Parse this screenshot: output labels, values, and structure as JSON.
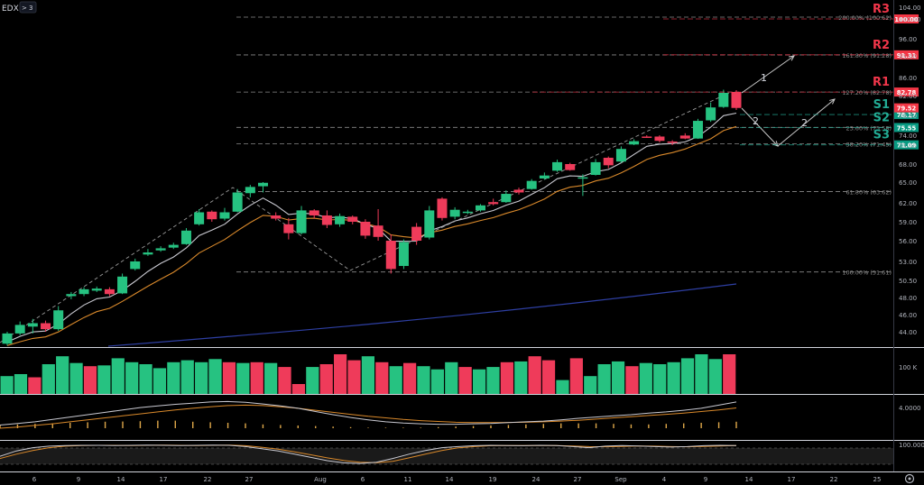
{
  "header": {
    "symbol": "EDX",
    "badge_chevron": ">",
    "badge_count": "3"
  },
  "colors": {
    "up": "#26c281",
    "down": "#ef3b5a",
    "ema_fast": "#c9c9d1",
    "ema_slow": "#d9892b",
    "ma_long": "#2e3fa3",
    "fib_line": "#8a8a8a",
    "resistance": "#f2364a",
    "support": "#22ab94",
    "bg": "#000000"
  },
  "chart_data": [
    {
      "type": "candlestick",
      "panel": "price",
      "y_ticks": [
        44.0,
        46.0,
        48.0,
        50.5,
        53.0,
        56.0,
        59.0,
        62.0,
        65.0,
        68.0,
        71.0,
        74.0,
        78.0,
        82.0,
        86.0,
        91.0,
        96.0,
        100.0,
        104.0
      ],
      "x_ticks": [
        "6",
        "9",
        "14",
        "17",
        "22",
        "27",
        "Aug",
        "6",
        "11",
        "14",
        "19",
        "24",
        "27",
        "Sep",
        "4",
        "9",
        "14",
        "17",
        "22",
        "25"
      ],
      "candles": [
        {
          "o": 42.6,
          "h": 44.0,
          "l": 42.4,
          "c": 43.8
        },
        {
          "o": 43.8,
          "h": 45.2,
          "l": 43.6,
          "c": 44.8
        },
        {
          "o": 44.6,
          "h": 45.5,
          "l": 43.8,
          "c": 45.0
        },
        {
          "o": 45.0,
          "h": 45.3,
          "l": 44.0,
          "c": 44.3
        },
        {
          "o": 44.3,
          "h": 47.0,
          "l": 44.1,
          "c": 46.5
        },
        {
          "o": 48.2,
          "h": 48.8,
          "l": 47.8,
          "c": 48.5
        },
        {
          "o": 48.5,
          "h": 49.5,
          "l": 48.2,
          "c": 49.2
        },
        {
          "o": 49.0,
          "h": 49.6,
          "l": 48.8,
          "c": 49.3
        },
        {
          "o": 49.2,
          "h": 49.5,
          "l": 48.2,
          "c": 48.5
        },
        {
          "o": 48.6,
          "h": 51.4,
          "l": 48.5,
          "c": 51.0
        },
        {
          "o": 52.0,
          "h": 53.4,
          "l": 51.8,
          "c": 53.0
        },
        {
          "o": 54.0,
          "h": 54.8,
          "l": 53.8,
          "c": 54.3
        },
        {
          "o": 54.6,
          "h": 55.2,
          "l": 54.4,
          "c": 54.9
        },
        {
          "o": 55.0,
          "h": 55.7,
          "l": 54.8,
          "c": 55.4
        },
        {
          "o": 55.5,
          "h": 58.0,
          "l": 55.4,
          "c": 57.6
        },
        {
          "o": 58.6,
          "h": 61.0,
          "l": 58.4,
          "c": 60.5
        },
        {
          "o": 60.6,
          "h": 60.8,
          "l": 59.0,
          "c": 59.4
        },
        {
          "o": 59.5,
          "h": 61.2,
          "l": 59.2,
          "c": 60.5
        },
        {
          "o": 60.6,
          "h": 64.0,
          "l": 60.5,
          "c": 63.5
        },
        {
          "o": 63.4,
          "h": 64.6,
          "l": 62.8,
          "c": 64.3
        },
        {
          "o": 64.4,
          "h": 65.0,
          "l": 63.5,
          "c": 64.9
        },
        {
          "o": 60.0,
          "h": 60.5,
          "l": 59.2,
          "c": 59.5
        },
        {
          "o": 58.6,
          "h": 59.6,
          "l": 56.2,
          "c": 57.2
        },
        {
          "o": 57.2,
          "h": 61.5,
          "l": 57.0,
          "c": 60.8
        },
        {
          "o": 60.8,
          "h": 61.0,
          "l": 59.5,
          "c": 60.0
        },
        {
          "o": 60.0,
          "h": 60.8,
          "l": 58.0,
          "c": 58.5
        },
        {
          "o": 58.6,
          "h": 60.3,
          "l": 58.2,
          "c": 59.9
        },
        {
          "o": 59.8,
          "h": 60.0,
          "l": 58.6,
          "c": 59.0
        },
        {
          "o": 59.0,
          "h": 59.4,
          "l": 56.3,
          "c": 56.8
        },
        {
          "o": 58.4,
          "h": 61.0,
          "l": 56.0,
          "c": 56.6
        },
        {
          "o": 56.0,
          "h": 57.0,
          "l": 51.4,
          "c": 52.0
        },
        {
          "o": 52.4,
          "h": 56.2,
          "l": 52.0,
          "c": 55.8
        },
        {
          "o": 58.2,
          "h": 58.8,
          "l": 55.4,
          "c": 56.0
        },
        {
          "o": 56.5,
          "h": 61.5,
          "l": 56.2,
          "c": 60.8
        },
        {
          "o": 62.6,
          "h": 62.8,
          "l": 59.2,
          "c": 59.6
        },
        {
          "o": 59.8,
          "h": 61.3,
          "l": 59.4,
          "c": 60.9
        },
        {
          "o": 60.5,
          "h": 60.9,
          "l": 60.2,
          "c": 60.6
        },
        {
          "o": 60.8,
          "h": 61.8,
          "l": 60.6,
          "c": 61.6
        },
        {
          "o": 62.1,
          "h": 62.6,
          "l": 61.6,
          "c": 61.8
        },
        {
          "o": 62.1,
          "h": 63.8,
          "l": 62.0,
          "c": 63.3
        },
        {
          "o": 63.9,
          "h": 64.2,
          "l": 63.2,
          "c": 63.5
        },
        {
          "o": 64.0,
          "h": 65.5,
          "l": 63.9,
          "c": 65.2
        },
        {
          "o": 65.6,
          "h": 66.6,
          "l": 65.4,
          "c": 66.1
        },
        {
          "o": 66.9,
          "h": 68.7,
          "l": 66.7,
          "c": 68.3
        },
        {
          "o": 68.0,
          "h": 68.2,
          "l": 66.9,
          "c": 67.0
        },
        {
          "o": 65.6,
          "h": 66.3,
          "l": 63.0,
          "c": 65.8
        },
        {
          "o": 66.2,
          "h": 68.8,
          "l": 66.1,
          "c": 68.3
        },
        {
          "o": 69.0,
          "h": 69.2,
          "l": 67.3,
          "c": 67.8
        },
        {
          "o": 68.4,
          "h": 70.8,
          "l": 68.2,
          "c": 70.4
        },
        {
          "o": 71.2,
          "h": 72.8,
          "l": 71.0,
          "c": 72.2
        },
        {
          "o": 73.6,
          "h": 74.0,
          "l": 73.2,
          "c": 73.4
        },
        {
          "o": 73.6,
          "h": 74.0,
          "l": 71.8,
          "c": 72.3
        },
        {
          "o": 72.1,
          "h": 72.5,
          "l": 71.0,
          "c": 71.8
        },
        {
          "o": 73.9,
          "h": 74.4,
          "l": 72.8,
          "c": 73.0
        },
        {
          "o": 73.0,
          "h": 77.3,
          "l": 72.9,
          "c": 76.9
        },
        {
          "o": 77.0,
          "h": 80.6,
          "l": 76.7,
          "c": 79.6
        },
        {
          "o": 79.7,
          "h": 83.3,
          "l": 79.5,
          "c": 82.6
        },
        {
          "o": 82.8,
          "h": 83.2,
          "l": 79.1,
          "c": 79.5
        }
      ],
      "last_price": 79.52,
      "last_price_label": "79.52",
      "fib_levels": [
        {
          "label": "200.00% (100.62)",
          "value": 100.62
        },
        {
          "label": "161.80% (91.28)",
          "value": 91.28
        },
        {
          "label": "127.20% (82.78)",
          "value": 82.78
        },
        {
          "label": "23.60% (75.58)",
          "value": 75.58
        },
        {
          "label": "38.20% (71.45)",
          "value": 71.45
        },
        {
          "label": "61.80% (63.62)",
          "value": 63.62
        },
        {
          "label": "100.00% (51.61)",
          "value": 51.61
        }
      ],
      "levels": [
        {
          "name": "R3",
          "value": 100.0,
          "tag": "100.00",
          "kind": "resistance"
        },
        {
          "name": "R2",
          "value": 91.31,
          "tag": "91.31",
          "kind": "resistance"
        },
        {
          "name": "R1",
          "value": 82.78,
          "tag": "82.78",
          "kind": "resistance"
        },
        {
          "name": "S1",
          "value": 78.17,
          "tag": "78.17",
          "kind": "support"
        },
        {
          "name": "S2",
          "value": 75.55,
          "tag": "75.55",
          "kind": "support"
        },
        {
          "name": "S3",
          "value": 71.09,
          "tag": "71.09",
          "kind": "support"
        }
      ],
      "projection_labels": [
        "1",
        "2",
        "2"
      ]
    },
    {
      "type": "bar",
      "panel": "volume",
      "y_tick_label": "100 K",
      "bars": [
        {
          "v": 0.45,
          "up": true
        },
        {
          "v": 0.5,
          "up": true
        },
        {
          "v": 0.42,
          "up": false
        },
        {
          "v": 0.75,
          "up": true
        },
        {
          "v": 0.95,
          "up": true
        },
        {
          "v": 0.78,
          "up": true
        },
        {
          "v": 0.7,
          "up": false
        },
        {
          "v": 0.72,
          "up": true
        },
        {
          "v": 0.9,
          "up": true
        },
        {
          "v": 0.8,
          "up": true
        },
        {
          "v": 0.75,
          "up": true
        },
        {
          "v": 0.65,
          "up": true
        },
        {
          "v": 0.8,
          "up": true
        },
        {
          "v": 0.85,
          "up": true
        },
        {
          "v": 0.8,
          "up": true
        },
        {
          "v": 0.88,
          "up": true
        },
        {
          "v": 0.8,
          "up": false
        },
        {
          "v": 0.78,
          "up": true
        },
        {
          "v": 0.8,
          "up": false
        },
        {
          "v": 0.78,
          "up": true
        },
        {
          "v": 0.68,
          "up": false
        },
        {
          "v": 0.25,
          "up": false
        },
        {
          "v": 0.68,
          "up": true
        },
        {
          "v": 0.75,
          "up": false
        },
        {
          "v": 1.0,
          "up": false
        },
        {
          "v": 0.85,
          "up": false
        },
        {
          "v": 0.95,
          "up": true
        },
        {
          "v": 0.8,
          "up": false
        },
        {
          "v": 0.7,
          "up": true
        },
        {
          "v": 0.78,
          "up": false
        },
        {
          "v": 0.7,
          "up": true
        },
        {
          "v": 0.62,
          "up": true
        },
        {
          "v": 0.8,
          "up": true
        },
        {
          "v": 0.68,
          "up": false
        },
        {
          "v": 0.62,
          "up": true
        },
        {
          "v": 0.68,
          "up": true
        },
        {
          "v": 0.8,
          "up": false
        },
        {
          "v": 0.82,
          "up": true
        },
        {
          "v": 0.95,
          "up": false
        },
        {
          "v": 0.85,
          "up": false
        },
        {
          "v": 0.35,
          "up": true
        },
        {
          "v": 0.9,
          "up": false
        },
        {
          "v": 0.45,
          "up": true
        },
        {
          "v": 0.75,
          "up": true
        },
        {
          "v": 0.82,
          "up": true
        },
        {
          "v": 0.7,
          "up": false
        },
        {
          "v": 0.78,
          "up": true
        },
        {
          "v": 0.75,
          "up": true
        },
        {
          "v": 0.8,
          "up": true
        },
        {
          "v": 0.9,
          "up": true
        },
        {
          "v": 1.0,
          "up": true
        },
        {
          "v": 0.88,
          "up": true
        },
        {
          "v": 1.0,
          "up": false
        }
      ]
    },
    {
      "type": "line",
      "panel": "macd",
      "y_tick_label": "4.0000",
      "series_fast": [
        1.6,
        1.8,
        2.0,
        2.3,
        2.6,
        2.9,
        3.2,
        3.5,
        3.8,
        4.0,
        4.2,
        4.35,
        4.5,
        4.55,
        4.45,
        4.25,
        4.0,
        3.7,
        3.3,
        2.9,
        2.55,
        2.25,
        2.0,
        1.85,
        1.75,
        1.7,
        1.7,
        1.75,
        1.8,
        1.9,
        2.0,
        2.1,
        2.25,
        2.45,
        2.6,
        2.75,
        2.9,
        3.1,
        3.25,
        3.45,
        3.7,
        4.1,
        4.5
      ],
      "series_slow": [
        1.2,
        1.35,
        1.55,
        1.75,
        2.0,
        2.25,
        2.5,
        2.75,
        3.0,
        3.25,
        3.5,
        3.7,
        3.9,
        4.05,
        4.1,
        4.05,
        3.9,
        3.7,
        3.45,
        3.2,
        2.95,
        2.7,
        2.5,
        2.3,
        2.15,
        2.05,
        1.95,
        1.9,
        1.9,
        1.92,
        1.95,
        2.0,
        2.1,
        2.2,
        2.35,
        2.5,
        2.65,
        2.8,
        2.95,
        3.1,
        3.3,
        3.5,
        3.75
      ],
      "histogram": [
        0.3,
        0.35,
        0.4,
        0.45,
        0.5,
        0.55,
        0.6,
        0.62,
        0.65,
        0.7,
        0.7,
        0.6,
        0.55,
        0.5,
        0.45,
        0.35,
        0.3,
        0.25,
        0.2,
        0.15,
        0.1,
        0.05,
        0.05,
        0.05,
        0.05,
        0.1,
        0.15,
        0.2,
        0.25,
        0.3,
        0.35,
        0.4,
        0.45,
        0.45,
        0.45,
        0.4,
        0.35,
        0.35,
        0.4,
        0.45,
        0.5,
        0.55,
        0.6
      ]
    },
    {
      "type": "line",
      "panel": "stochastic",
      "y_tick_label": "100.0000",
      "series_k": [
        45,
        70,
        85,
        92,
        95,
        96,
        96,
        95,
        96,
        97,
        96,
        95,
        96,
        97,
        96,
        90,
        80,
        70,
        55,
        40,
        25,
        15,
        12,
        18,
        35,
        55,
        72,
        85,
        90,
        94,
        96,
        95,
        94,
        96,
        95,
        90,
        85,
        92,
        95,
        93,
        90,
        88,
        90,
        94,
        96,
        95
      ],
      "series_d": [
        35,
        55,
        72,
        85,
        92,
        95,
        96,
        96,
        95,
        96,
        97,
        96,
        95,
        96,
        97,
        94,
        87,
        78,
        66,
        52,
        38,
        26,
        18,
        16,
        22,
        38,
        55,
        72,
        84,
        90,
        94,
        95,
        95,
        95,
        95,
        93,
        90,
        89,
        91,
        93,
        92,
        90,
        89,
        91,
        93,
        95
      ]
    }
  ]
}
